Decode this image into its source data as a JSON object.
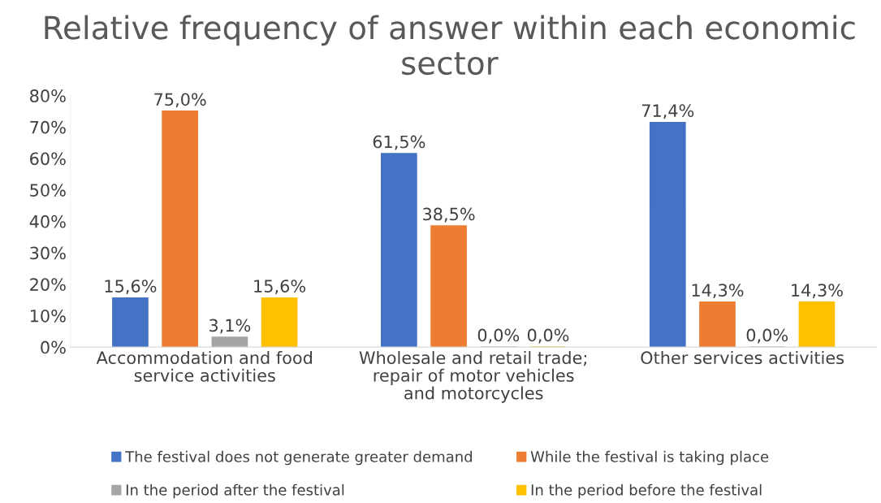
{
  "chart_data": {
    "type": "bar",
    "title": "Relative frequency of answer within each economic sector",
    "categories": [
      "Accommodation and food service activities",
      "Wholesale and retail trade; repair of motor vehicles and motorcycles",
      "Other services activities"
    ],
    "series": [
      {
        "name": "The festival does not generate greater demand",
        "color": "#4472c4",
        "values": [
          15.6,
          61.5,
          71.4
        ],
        "value_labels": [
          "15,6%",
          "61,5%",
          "71,4%"
        ]
      },
      {
        "name": "While the festival is taking place",
        "color": "#ed7d31",
        "values": [
          75.0,
          38.5,
          14.3
        ],
        "value_labels": [
          "75,0%",
          "38,5%",
          "14,3%"
        ]
      },
      {
        "name": "In the period after the festival",
        "color": "#a5a5a5",
        "values": [
          3.1,
          0.0,
          0.0
        ],
        "value_labels": [
          "3,1%",
          "0,0%",
          "0,0%"
        ]
      },
      {
        "name": "In the period before the festival",
        "color": "#ffc000",
        "values": [
          15.6,
          0.0,
          14.3
        ],
        "value_labels": [
          "15,6%",
          "0,0%",
          "14,3%"
        ]
      }
    ],
    "ylim": [
      0,
      80
    ],
    "yticks": [
      {
        "value": 0,
        "label": "0%"
      },
      {
        "value": 10,
        "label": "10%"
      },
      {
        "value": 20,
        "label": "20%"
      },
      {
        "value": 30,
        "label": "30%"
      },
      {
        "value": 40,
        "label": "40%"
      },
      {
        "value": 50,
        "label": "50%"
      },
      {
        "value": 60,
        "label": "60%"
      },
      {
        "value": 70,
        "label": "70%"
      },
      {
        "value": 80,
        "label": "80%"
      }
    ],
    "grid": false,
    "legend": "bottom"
  }
}
